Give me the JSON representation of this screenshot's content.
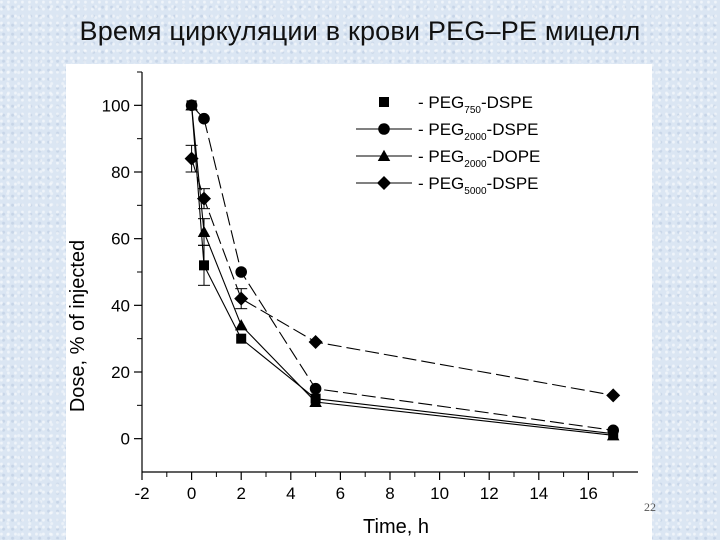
{
  "slide": {
    "title": "Время циркуляции в крови PEG–PE мицелл",
    "number": "22"
  },
  "chart_data": {
    "type": "line",
    "title": "",
    "xlabel": "Time, h",
    "ylabel": "Dose, % of injected",
    "xlim": [
      -2,
      18
    ],
    "ylim": [
      -10,
      110
    ],
    "xticks": [
      -2,
      0,
      2,
      4,
      6,
      8,
      10,
      12,
      14,
      16
    ],
    "yticks": [
      0,
      20,
      40,
      60,
      80,
      100
    ],
    "grid": false,
    "legend_position": "top-right",
    "series": [
      {
        "name": "- PEG750-DSPE",
        "legend": {
          "prefix": "- PEG",
          "sub": "750",
          "suffix": "-DSPE"
        },
        "marker": "square",
        "line": "thin-solid",
        "x": [
          0,
          0.5,
          2,
          5,
          17
        ],
        "y": [
          100,
          52,
          30,
          12,
          1.5
        ],
        "err": [
          0,
          6,
          0,
          0,
          0
        ]
      },
      {
        "name": "- PEG2000-DSPE",
        "legend": {
          "prefix": "- PEG",
          "sub": "2000",
          "suffix": "-DSPE"
        },
        "marker": "circle",
        "line": "long-dash",
        "x": [
          0,
          0.5,
          2,
          5,
          17
        ],
        "y": [
          100,
          96,
          50,
          15,
          2.5
        ],
        "err": [
          0,
          0,
          0,
          0,
          0
        ]
      },
      {
        "name": "- PEG2000-DOPE",
        "legend": {
          "prefix": "- PEG",
          "sub": "2000",
          "suffix": "-DOPE"
        },
        "marker": "triangle",
        "line": "thin-solid",
        "x": [
          0,
          0.5,
          2,
          5,
          17
        ],
        "y": [
          100,
          62,
          34,
          11,
          1
        ],
        "err": [
          0,
          4,
          0,
          0,
          0
        ]
      },
      {
        "name": "- PEG5000-DSPE",
        "legend": {
          "prefix": "- PEG",
          "sub": "5000",
          "suffix": "-DSPE"
        },
        "marker": "diamond",
        "line": "long-dash",
        "x": [
          0,
          0.5,
          2,
          5,
          17
        ],
        "y": [
          84,
          72,
          42,
          29,
          13
        ],
        "err": [
          4,
          3,
          3,
          0,
          0
        ]
      }
    ]
  }
}
